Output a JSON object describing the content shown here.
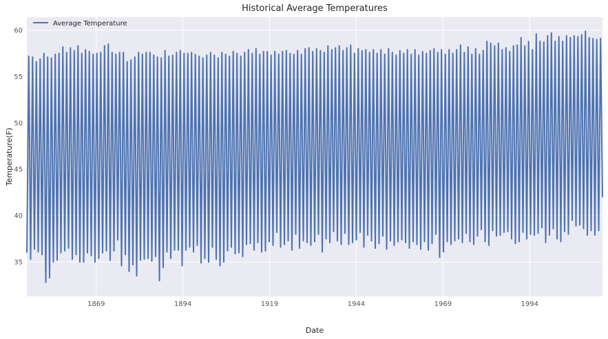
{
  "chart_data": {
    "type": "line",
    "title": "Historical Average Temperatures",
    "xlabel": "Date",
    "ylabel": "Temperature(F)",
    "x_start": 1849,
    "x_end": 2015,
    "xlim": [
      1849,
      2015
    ],
    "ylim": [
      31.3,
      61.4
    ],
    "x_ticks": [
      1869,
      1894,
      1919,
      1944,
      1969,
      1994
    ],
    "y_ticks": [
      35,
      40,
      45,
      50,
      55,
      60
    ],
    "grid": true,
    "legend_position": "top-left",
    "series": [
      {
        "name": "Average Temperature",
        "color": "#4c72b0",
        "peaks": [
          57.2,
          57.1,
          56.6,
          56.9,
          57.5,
          57.1,
          57.0,
          57.4,
          57.5,
          58.2,
          57.6,
          58.1,
          57.8,
          58.3,
          57.5,
          57.9,
          57.7,
          57.4,
          57.5,
          57.6,
          58.3,
          58.5,
          57.6,
          57.4,
          57.6,
          57.6,
          56.6,
          56.8,
          57.1,
          57.6,
          57.4,
          57.6,
          57.6,
          57.3,
          57.1,
          57.0,
          57.8,
          57.2,
          57.3,
          57.6,
          57.8,
          57.5,
          57.5,
          57.6,
          57.4,
          57.2,
          57.0,
          57.3,
          57.6,
          57.3,
          57.0,
          57.6,
          57.4,
          57.2,
          57.7,
          57.5,
          57.2,
          57.6,
          57.9,
          57.5,
          58.0,
          57.4,
          57.7,
          57.7,
          57.3,
          57.7,
          57.4,
          57.7,
          57.8,
          57.5,
          57.4,
          57.8,
          57.4,
          58.0,
          58.1,
          57.7,
          58.0,
          57.8,
          57.6,
          58.3,
          57.9,
          58.1,
          58.3,
          57.8,
          58.1,
          58.4,
          57.5,
          58.0,
          57.8,
          57.9,
          57.6,
          57.9,
          57.5,
          57.9,
          57.4,
          58.0,
          57.6,
          57.3,
          57.8,
          57.5,
          57.9,
          57.4,
          57.9,
          57.3,
          57.7,
          57.5,
          57.8,
          58.0,
          57.6,
          57.9,
          57.4,
          57.9,
          57.5,
          57.9,
          58.4,
          57.6,
          58.2,
          57.4,
          58.0,
          57.4,
          57.8,
          58.8,
          58.6,
          58.3,
          58.6,
          57.9,
          58.1,
          57.7,
          58.3,
          58.4,
          59.2,
          58.3,
          58.8,
          57.9,
          59.6,
          58.8,
          58.7,
          59.4,
          59.7,
          58.8,
          59.3,
          58.8,
          59.4,
          59.2,
          59.4,
          59.3,
          59.5,
          59.9,
          59.2,
          59.1,
          59.0,
          59.1
        ],
        "troughs": [
          36.0,
          35.3,
          36.4,
          36.1,
          35.8,
          32.8,
          33.3,
          35.0,
          35.2,
          36.0,
          36.2,
          36.5,
          35.3,
          35.8,
          35.0,
          35.0,
          36.0,
          35.7,
          35.0,
          35.4,
          36.0,
          36.2,
          35.2,
          36.2,
          37.4,
          34.6,
          35.8,
          34.0,
          34.7,
          33.5,
          35.2,
          35.3,
          35.4,
          35.1,
          35.6,
          33.0,
          34.4,
          36.1,
          35.4,
          36.3,
          36.3,
          34.6,
          36.3,
          36.6,
          36.1,
          36.8,
          34.9,
          35.4,
          35.0,
          36.6,
          35.3,
          34.6,
          35.0,
          36.2,
          36.6,
          35.9,
          36.0,
          35.6,
          36.9,
          37.0,
          36.3,
          37.1,
          36.1,
          36.2,
          37.2,
          36.8,
          38.2,
          36.6,
          36.9,
          37.3,
          36.3,
          38.0,
          36.5,
          37.3,
          37.1,
          36.8,
          37.2,
          38.0,
          36.1,
          37.5,
          37.1,
          38.3,
          37.3,
          36.9,
          38.1,
          36.9,
          37.1,
          37.4,
          38.2,
          36.6,
          37.9,
          37.3,
          36.5,
          37.0,
          37.8,
          36.4,
          37.3,
          36.8,
          37.2,
          37.4,
          37.1,
          36.5,
          37.2,
          36.9,
          36.4,
          37.2,
          36.3,
          37.0,
          38.0,
          35.5,
          36.1,
          37.2,
          36.9,
          37.3,
          37.5,
          37.1,
          38.1,
          37.2,
          36.9,
          37.8,
          38.5,
          37.2,
          36.8,
          38.4,
          37.8,
          37.9,
          38.2,
          38.3,
          37.5,
          37.0,
          37.2,
          38.2,
          37.5,
          38.0,
          37.9,
          38.1,
          38.7,
          37.1,
          37.9,
          38.6,
          37.5,
          37.2,
          38.3,
          38.0,
          39.5,
          38.9,
          39.0,
          38.6,
          37.9,
          38.4,
          37.9,
          38.4,
          38.8,
          37.8,
          38.5,
          38.9
        ],
        "end_value": 42.0
      }
    ]
  }
}
